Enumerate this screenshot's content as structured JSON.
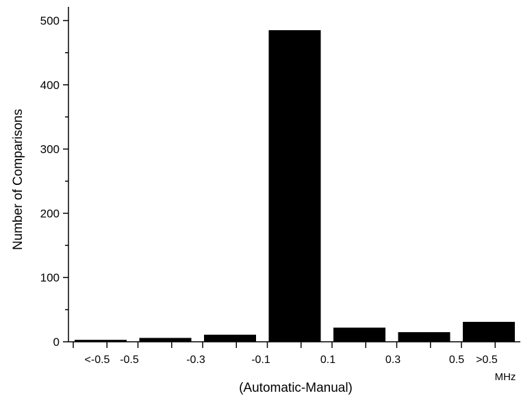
{
  "chart_data": {
    "type": "bar",
    "categories": [
      "<-0.5",
      "-0.5 to -0.3",
      "-0.3 to -0.1",
      "-0.1 to 0.1",
      "0.1 to 0.3",
      "0.3 to 0.5",
      ">0.5"
    ],
    "values": [
      3,
      6,
      11,
      485,
      22,
      15,
      31
    ],
    "xlabel": "(Automatic-Manual)",
    "xunit": "MHz",
    "ylabel": "Number of Comparisons",
    "ylim": [
      0,
      500
    ],
    "yticks": [
      0,
      100,
      200,
      300,
      400,
      500
    ],
    "xtick_labels": [
      "<-0.5",
      "-0.5",
      "-0.3",
      "-0.1",
      "0.1",
      "0.3",
      "0.5",
      ">0.5"
    ],
    "grid": false,
    "color": "#000000"
  }
}
